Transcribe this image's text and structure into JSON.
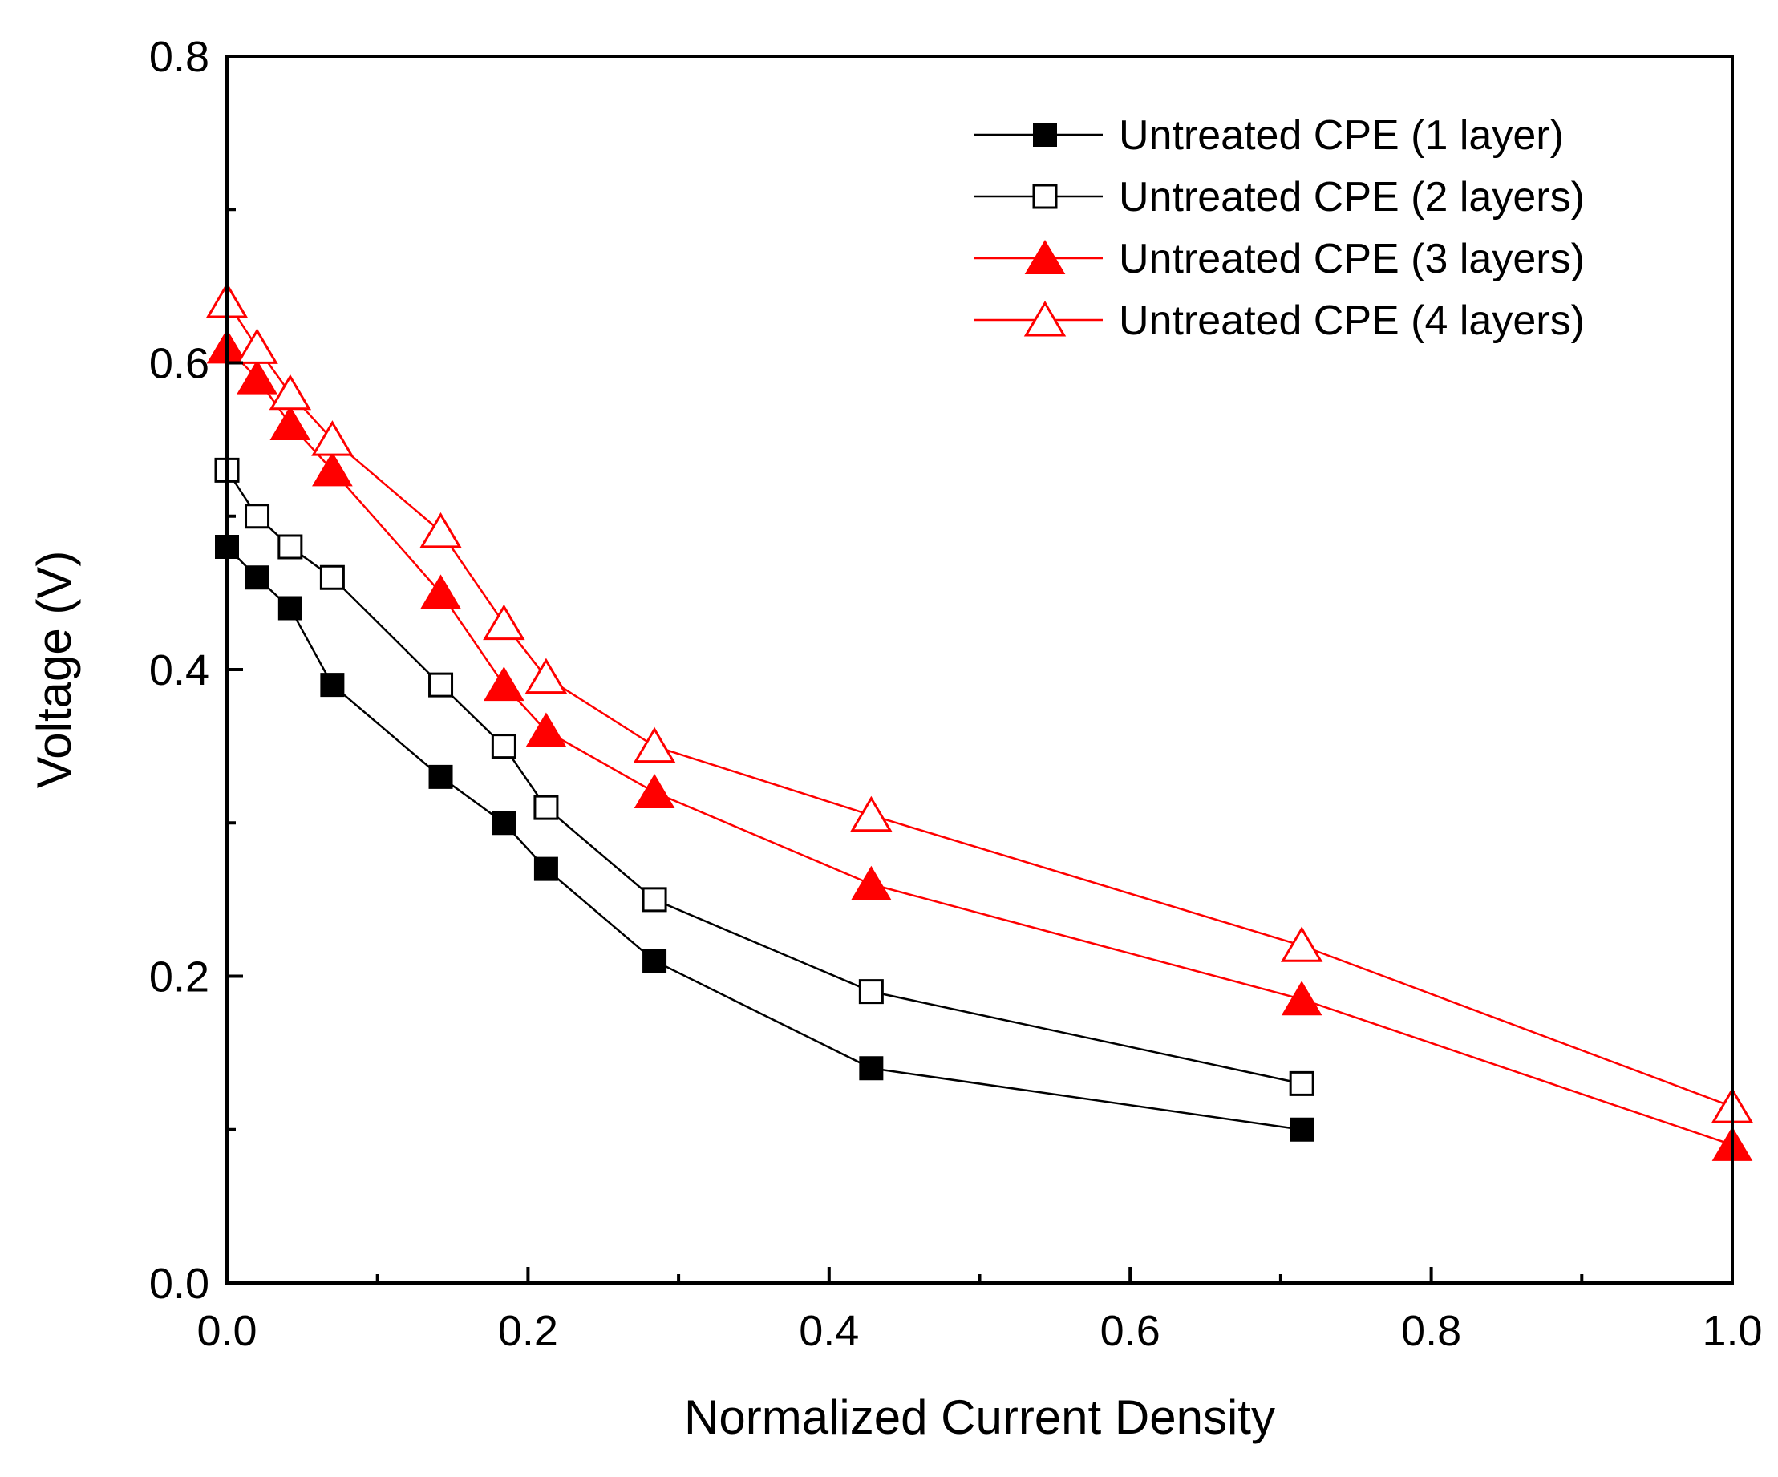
{
  "chart_data": {
    "type": "line",
    "title": "",
    "xlabel": "Normalized Current Density",
    "ylabel": "Voltage (V)",
    "xlim": [
      0,
      1.0
    ],
    "ylim": [
      0,
      0.8
    ],
    "x_ticks": [
      "0.0",
      "0.2",
      "0.4",
      "0.6",
      "0.8",
      "1.0"
    ],
    "y_ticks": [
      "0.0",
      "0.2",
      "0.4",
      "0.6",
      "0.8"
    ],
    "grid": false,
    "legend_position": "top-right",
    "series": [
      {
        "name": "Untreated CPE (1 layer)",
        "color": "#000000",
        "marker": "filled-square",
        "x": [
          0.0,
          0.02,
          0.042,
          0.07,
          0.142,
          0.184,
          0.212,
          0.284,
          0.428,
          0.714
        ],
        "y": [
          0.48,
          0.46,
          0.44,
          0.39,
          0.33,
          0.3,
          0.27,
          0.21,
          0.14,
          0.1
        ]
      },
      {
        "name": "Untreated CPE (2 layers)",
        "color": "#000000",
        "marker": "open-square",
        "x": [
          0.0,
          0.02,
          0.042,
          0.07,
          0.142,
          0.184,
          0.212,
          0.284,
          0.428,
          0.714
        ],
        "y": [
          0.53,
          0.5,
          0.48,
          0.46,
          0.39,
          0.35,
          0.31,
          0.25,
          0.19,
          0.13
        ]
      },
      {
        "name": "Untreated CPE (3 layers)",
        "color": "#ff0000",
        "marker": "filled-triangle",
        "x": [
          0.0,
          0.02,
          0.042,
          0.07,
          0.142,
          0.184,
          0.212,
          0.284,
          0.428,
          0.714,
          1.0
        ],
        "y": [
          0.61,
          0.59,
          0.56,
          0.53,
          0.45,
          0.39,
          0.36,
          0.32,
          0.26,
          0.185,
          0.09
        ]
      },
      {
        "name": "Untreated CPE (4 layers)",
        "color": "#ff0000",
        "marker": "open-triangle",
        "x": [
          0.0,
          0.02,
          0.042,
          0.07,
          0.142,
          0.184,
          0.212,
          0.284,
          0.428,
          0.714,
          1.0
        ],
        "y": [
          0.64,
          0.61,
          0.58,
          0.55,
          0.49,
          0.43,
          0.395,
          0.35,
          0.305,
          0.22,
          0.115
        ]
      }
    ]
  }
}
